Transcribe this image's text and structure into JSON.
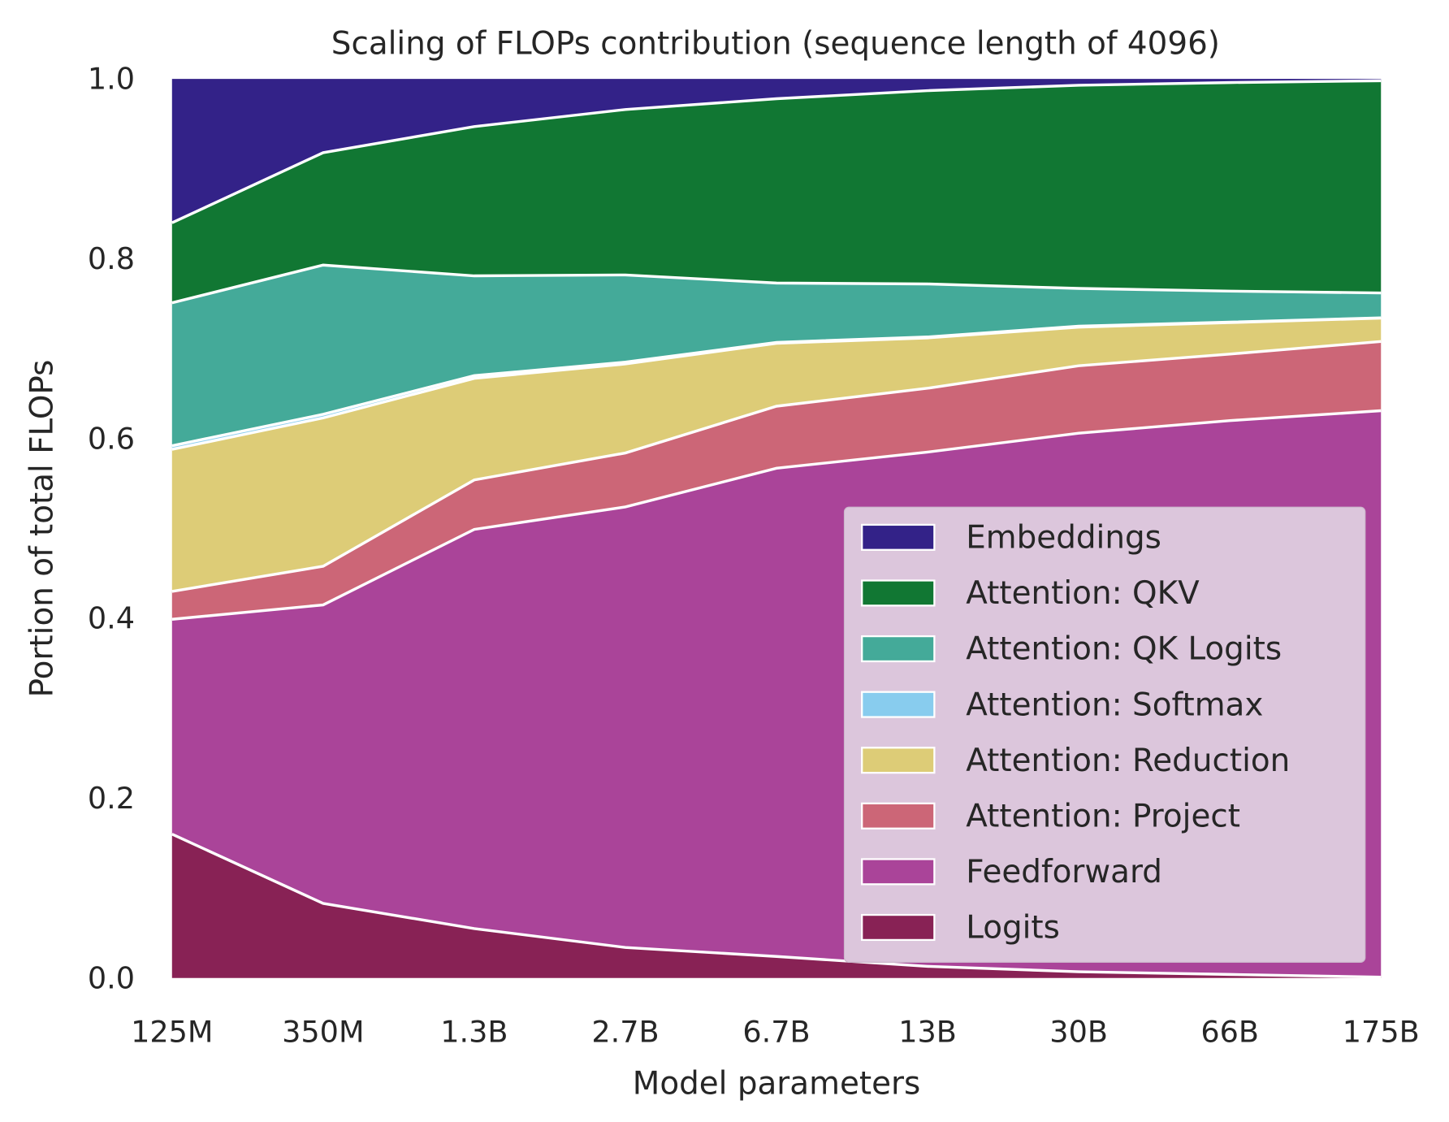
{
  "chart_data": {
    "type": "area",
    "stacked": true,
    "title": "Scaling of FLOPs contribution (sequence length of 4096)",
    "xlabel": "Model parameters",
    "ylabel": "Portion of total FLOPs",
    "categories": [
      "125M",
      "350M",
      "1.3B",
      "2.7B",
      "6.7B",
      "13B",
      "30B",
      "66B",
      "175B"
    ],
    "ylim": [
      0,
      1.0
    ],
    "yticks": [
      "0.0",
      "0.2",
      "0.4",
      "0.6",
      "0.8",
      "1.0"
    ],
    "grid": false,
    "legend_position": "lower-right",
    "series": [
      {
        "name": "Logits",
        "color": "#882255",
        "values": [
          0.16,
          0.083,
          0.055,
          0.034,
          0.024,
          0.013,
          0.007,
          0.004,
          0.001
        ]
      },
      {
        "name": "Feedforward",
        "color": "#AA4499",
        "values": [
          0.239,
          0.332,
          0.444,
          0.49,
          0.543,
          0.572,
          0.599,
          0.616,
          0.63
        ]
      },
      {
        "name": "Attention: Project",
        "color": "#CC6677",
        "values": [
          0.031,
          0.043,
          0.055,
          0.06,
          0.069,
          0.071,
          0.075,
          0.074,
          0.077
        ]
      },
      {
        "name": "Attention: Reduction",
        "color": "#DDCC77",
        "values": [
          0.158,
          0.165,
          0.113,
          0.099,
          0.07,
          0.056,
          0.043,
          0.035,
          0.026
        ]
      },
      {
        "name": "Attention: Softmax",
        "color": "#88CCEE",
        "values": [
          0.004,
          0.004,
          0.003,
          0.002,
          0.001,
          0.001,
          0.001,
          0.0005,
          0.0003
        ]
      },
      {
        "name": "Attention: QK Logits",
        "color": "#44AA99",
        "values": [
          0.159,
          0.166,
          0.111,
          0.097,
          0.066,
          0.059,
          0.042,
          0.0345,
          0.0277
        ]
      },
      {
        "name": "Attention: QKV",
        "color": "#117733",
        "values": [
          0.089,
          0.125,
          0.166,
          0.184,
          0.205,
          0.215,
          0.226,
          0.232,
          0.236
        ]
      },
      {
        "name": "Embeddings",
        "color": "#332288",
        "values": [
          0.16,
          0.082,
          0.053,
          0.034,
          0.022,
          0.013,
          0.007,
          0.004,
          0.002
        ]
      }
    ]
  }
}
